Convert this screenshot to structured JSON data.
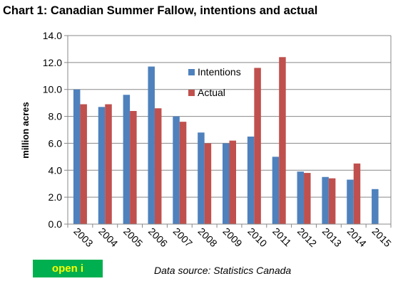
{
  "title": "Chart 1: Canadian Summer Fallow, intentions and actual",
  "source_text": "Data source:  Statistics Canada",
  "open_button_label": "open i",
  "chart_data": {
    "type": "bar",
    "title": "Chart 1: Canadian Summer Fallow, intentions and actual",
    "xlabel": "",
    "ylabel": "million acres",
    "ylim": [
      0,
      14
    ],
    "yticks": [
      "0.0",
      "2.0",
      "4.0",
      "6.0",
      "8.0",
      "10.0",
      "12.0",
      "14.0"
    ],
    "grid": true,
    "legend_position": "top-center",
    "categories": [
      "2003",
      "2004",
      "2005",
      "2006",
      "2007",
      "2008",
      "2009",
      "2010",
      "2011",
      "2012",
      "2013",
      "2014",
      "2015"
    ],
    "series": [
      {
        "name": "Intentions",
        "color": "#4f81bd",
        "values": [
          10.0,
          8.7,
          9.6,
          11.7,
          8.0,
          6.8,
          6.0,
          6.5,
          5.0,
          3.9,
          3.5,
          3.3,
          2.6
        ]
      },
      {
        "name": "Actual",
        "color": "#c0504d",
        "values": [
          8.9,
          8.9,
          8.4,
          8.6,
          7.6,
          6.0,
          6.2,
          11.6,
          12.4,
          3.8,
          3.4,
          4.5,
          null
        ]
      }
    ]
  }
}
